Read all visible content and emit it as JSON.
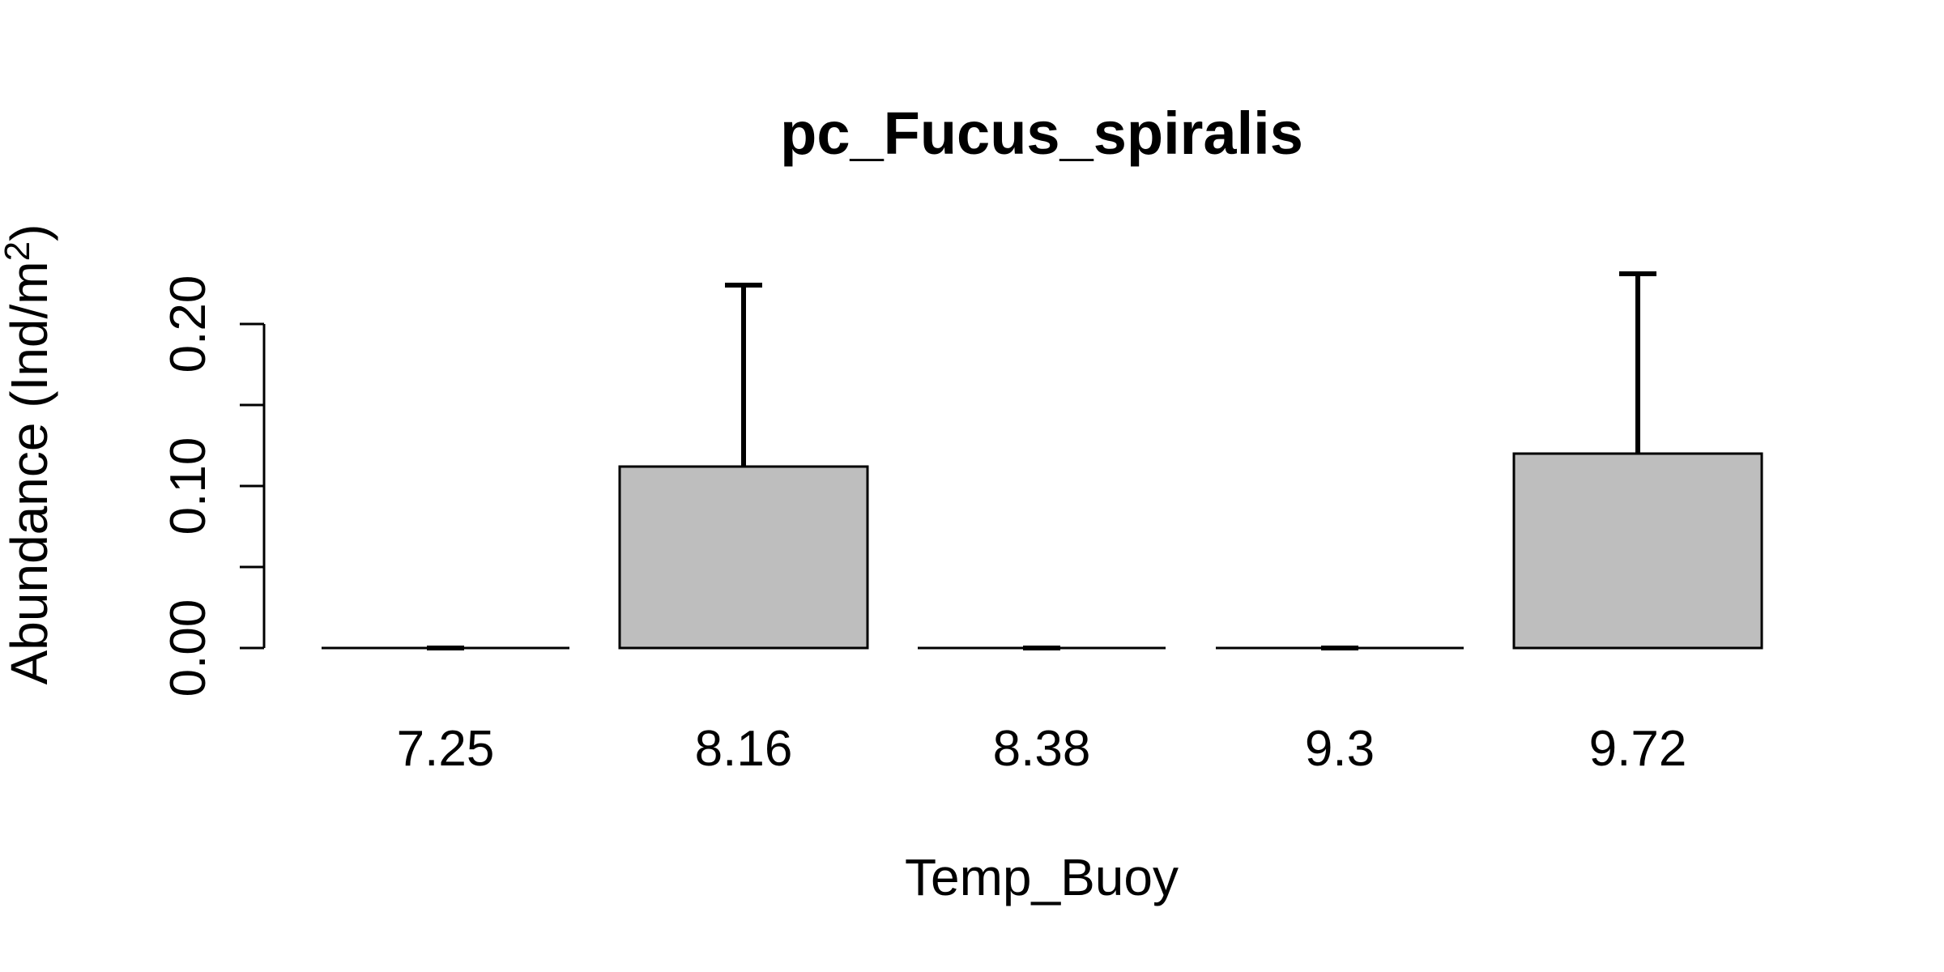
{
  "chart_data": {
    "type": "bar",
    "title": "pc_Fucus_spiralis",
    "xlabel": "Temp_Buoy",
    "ylabel_prefix": "Abundance (Ind/m",
    "ylabel_superscript": "2",
    "ylabel_suffix": ")",
    "categories": [
      "7.25",
      "8.16",
      "8.38",
      "9.3",
      "9.72"
    ],
    "values": [
      0.0,
      0.112,
      0.0,
      0.0,
      0.12
    ],
    "error_upper": [
      0.0,
      0.224,
      0.0,
      0.0,
      0.231
    ],
    "ylim": [
      0,
      0.2
    ],
    "yticks": [
      0.0,
      0.05,
      0.1,
      0.15,
      0.2
    ],
    "ytick_labels": [
      "0.00",
      "",
      "0.10",
      "",
      "0.20"
    ],
    "bar_color": "#BEBEBE",
    "grid": false,
    "legend": "none"
  }
}
